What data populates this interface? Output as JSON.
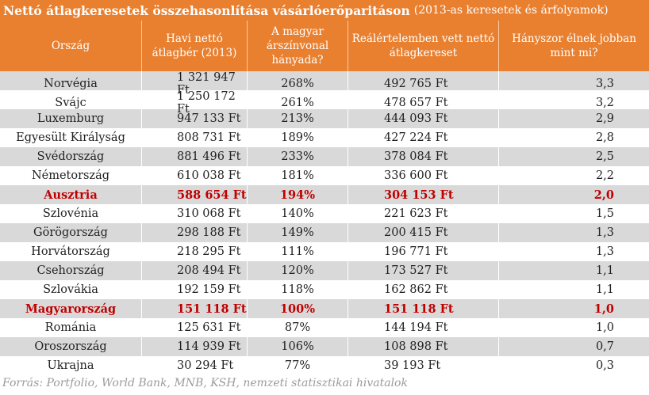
{
  "title": {
    "main": "Nettó átlagkeresetek összehasonlítása vásárlóerőparitáson",
    "sub": "(2013-as keresetek és árfolyamok)"
  },
  "headers": [
    "Ország",
    "Havi nettó átlagbér (2013)",
    "A magyar árszínvonal hányada?",
    "Reálértelemben vett nettó átlagkereset",
    "Hányszor élnek jobban mint mi?"
  ],
  "rows": [
    {
      "country": "Norvégia",
      "wage": "1 321 947 Ft",
      "pct": "268%",
      "real": "492 765 Ft",
      "times": "3,3",
      "highlight": false
    },
    {
      "country": "Svájc",
      "wage": "1 250 172 Ft",
      "pct": "261%",
      "real": "478 657 Ft",
      "times": "3,2",
      "highlight": false
    },
    {
      "country": "Luxemburg",
      "wage": "947 133 Ft",
      "pct": "213%",
      "real": "444 093 Ft",
      "times": "2,9",
      "highlight": false
    },
    {
      "country": "Egyesült Királyság",
      "wage": "808 731 Ft",
      "pct": "189%",
      "real": "427 224 Ft",
      "times": "2,8",
      "highlight": false
    },
    {
      "country": "Svédország",
      "wage": "881 496 Ft",
      "pct": "233%",
      "real": "378 084 Ft",
      "times": "2,5",
      "highlight": false
    },
    {
      "country": "Németország",
      "wage": "610 038 Ft",
      "pct": "181%",
      "real": "336 600 Ft",
      "times": "2,2",
      "highlight": false
    },
    {
      "country": "Ausztria",
      "wage": "588 654 Ft",
      "pct": "194%",
      "real": "304 153 Ft",
      "times": "2,0",
      "highlight": true
    },
    {
      "country": "Szlovénia",
      "wage": "310 068 Ft",
      "pct": "140%",
      "real": "221 623 Ft",
      "times": "1,5",
      "highlight": false
    },
    {
      "country": "Görögország",
      "wage": "298 188 Ft",
      "pct": "149%",
      "real": "200 415 Ft",
      "times": "1,3",
      "highlight": false
    },
    {
      "country": "Horvátország",
      "wage": "218 295 Ft",
      "pct": "111%",
      "real": "196 771 Ft",
      "times": "1,3",
      "highlight": false
    },
    {
      "country": "Csehország",
      "wage": "208 494 Ft",
      "pct": "120%",
      "real": "173 527 Ft",
      "times": "1,1",
      "highlight": false
    },
    {
      "country": "Szlovákia",
      "wage": "192 159 Ft",
      "pct": "118%",
      "real": "162 862 Ft",
      "times": "1,1",
      "highlight": false
    },
    {
      "country": "Magyarország",
      "wage": "151 118 Ft",
      "pct": "100%",
      "real": "151 118 Ft",
      "times": "1,0",
      "highlight": true
    },
    {
      "country": "Románia",
      "wage": "125 631 Ft",
      "pct": "87%",
      "real": "144 194 Ft",
      "times": "1,0",
      "highlight": false
    },
    {
      "country": "Oroszország",
      "wage": "114 939 Ft",
      "pct": "106%",
      "real": "108 898 Ft",
      "times": "0,7",
      "highlight": false
    },
    {
      "country": "Ukrajna",
      "wage": "30 294 Ft",
      "pct": "77%",
      "real": "39 193 Ft",
      "times": "0,3",
      "highlight": false
    }
  ],
  "source": "Forrás: Portfolio, World Bank, MNB, KSH, nemzeti statisztikai hivatalok",
  "colors": {
    "header_bg": "#e98030",
    "stripe": "#d9d9d9",
    "highlight_text": "#c00000"
  }
}
